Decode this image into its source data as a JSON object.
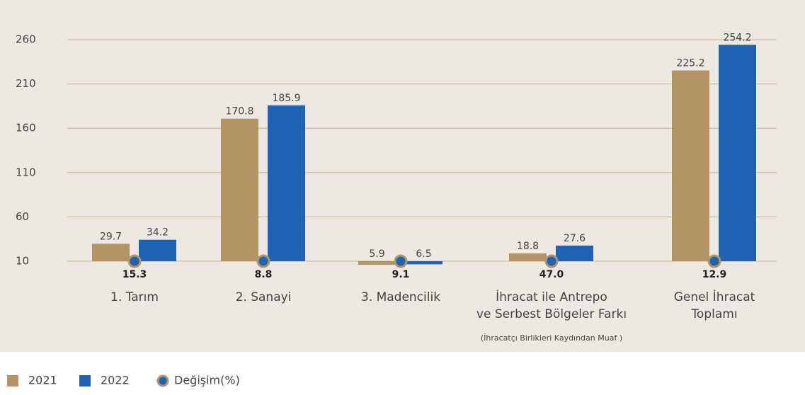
{
  "chart_data": {
    "type": "bar",
    "categories": [
      [
        "1. Tarım"
      ],
      [
        "2. Sanayi"
      ],
      [
        "3. Madencilik"
      ],
      [
        "İhracat ile Antrepo",
        "ve Serbest Bölgeler Farkı"
      ],
      [
        "Genel İhracat",
        "Toplamı"
      ]
    ],
    "annotation": "(İhracatçı Birlikleri Kaydından Muaf )",
    "series": [
      {
        "name": "2021",
        "color": "#b39464",
        "values": [
          29.7,
          170.8,
          5.9,
          18.8,
          225.2
        ]
      },
      {
        "name": "2022",
        "color": "#1f63b5",
        "values": [
          34.2,
          185.9,
          6.5,
          27.6,
          254.2
        ]
      }
    ],
    "change": {
      "name": "Değişim(%)",
      "color": "#1f63b5",
      "stroke": "#b39464",
      "values": [
        15.3,
        8.8,
        9.1,
        47,
        12.9
      ],
      "value_labels": [
        "15.3",
        "8.8",
        "9.1",
        "47.0",
        "12.9"
      ]
    },
    "ylim": [
      10,
      260
    ],
    "yticks": [
      10,
      60,
      110,
      160,
      210,
      260
    ],
    "grid": true
  }
}
